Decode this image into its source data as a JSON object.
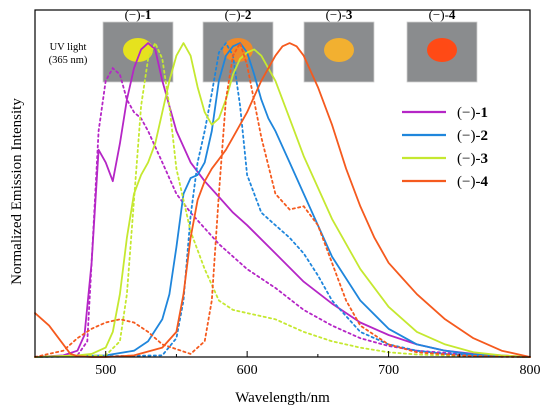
{
  "chart_data": {
    "type": "line",
    "xlabel": "Wavelength/nm",
    "ylabel": "Normalized Emission Intensity",
    "xlim": [
      450,
      800
    ],
    "ylim": [
      0,
      1.08
    ],
    "x_ticks": [
      500,
      600,
      700,
      800
    ],
    "legend_position": "right",
    "grid": false,
    "uv_note": [
      "UV light",
      "(365 nm)"
    ],
    "photos": [
      {
        "prefix": "(−)-",
        "num": "1",
        "powder_color": "#e6e21e"
      },
      {
        "prefix": "(−)-",
        "num": "2",
        "powder_color": "#f08a2a"
      },
      {
        "prefix": "(−)-",
        "num": "3",
        "powder_color": "#f2b030"
      },
      {
        "prefix": "(−)-",
        "num": "4",
        "powder_color": "#ff4a16"
      }
    ],
    "series": [
      {
        "name_prefix": "(−)-",
        "name_num": "1",
        "color": "#b526c6",
        "style": "solid",
        "x": [
          450,
          470,
          480,
          485,
          490,
          495,
          500,
          505,
          510,
          515,
          520,
          525,
          530,
          535,
          540,
          550,
          560,
          570,
          580,
          590,
          600,
          620,
          640,
          660,
          680,
          700,
          720,
          740,
          760,
          780,
          800
        ],
        "y": [
          0.0,
          0.005,
          0.02,
          0.07,
          0.3,
          0.66,
          0.62,
          0.56,
          0.68,
          0.82,
          0.92,
          0.98,
          1.0,
          0.98,
          0.88,
          0.72,
          0.62,
          0.56,
          0.51,
          0.46,
          0.42,
          0.33,
          0.24,
          0.17,
          0.11,
          0.07,
          0.04,
          0.02,
          0.01,
          0.005,
          0.0
        ]
      },
      {
        "name_prefix": "(−)-",
        "name_num": "1",
        "color": "#b526c6",
        "style": "dotted",
        "x": [
          450,
          480,
          487,
          490,
          495,
          500,
          505,
          510,
          515,
          520,
          525,
          530,
          540,
          550,
          560,
          570,
          580,
          600,
          620,
          640,
          660,
          680,
          700,
          720,
          750,
          780,
          800
        ],
        "y": [
          0.0,
          0.005,
          0.05,
          0.3,
          0.72,
          0.88,
          0.92,
          0.9,
          0.82,
          0.78,
          0.76,
          0.72,
          0.62,
          0.52,
          0.46,
          0.41,
          0.36,
          0.28,
          0.22,
          0.15,
          0.1,
          0.06,
          0.035,
          0.02,
          0.01,
          0.003,
          0.0
        ]
      },
      {
        "name_prefix": "(−)-",
        "name_num": "2",
        "color": "#1f86dc",
        "style": "solid",
        "x": [
          450,
          500,
          520,
          530,
          540,
          545,
          550,
          555,
          560,
          565,
          570,
          575,
          580,
          585,
          590,
          595,
          600,
          605,
          610,
          615,
          620,
          630,
          640,
          650,
          660,
          680,
          700,
          720,
          740,
          760,
          780,
          800
        ],
        "y": [
          0.0,
          0.005,
          0.02,
          0.05,
          0.12,
          0.2,
          0.35,
          0.52,
          0.57,
          0.58,
          0.62,
          0.72,
          0.88,
          0.96,
          0.99,
          1.0,
          0.97,
          0.9,
          0.82,
          0.76,
          0.72,
          0.62,
          0.52,
          0.42,
          0.32,
          0.18,
          0.09,
          0.04,
          0.02,
          0.008,
          0.003,
          0.0
        ]
      },
      {
        "name_prefix": "(−)-",
        "name_num": "2",
        "color": "#1f86dc",
        "style": "dotted",
        "x": [
          450,
          540,
          550,
          555,
          560,
          565,
          570,
          575,
          580,
          585,
          590,
          595,
          600,
          610,
          620,
          630,
          640,
          650,
          660,
          680,
          700,
          720,
          740,
          770,
          800
        ],
        "y": [
          0.0,
          0.005,
          0.06,
          0.18,
          0.45,
          0.62,
          0.72,
          0.84,
          0.97,
          1.0,
          0.96,
          0.8,
          0.58,
          0.46,
          0.42,
          0.38,
          0.33,
          0.26,
          0.18,
          0.08,
          0.04,
          0.02,
          0.01,
          0.003,
          0.0
        ]
      },
      {
        "name_prefix": "(−)-",
        "name_num": "3",
        "color": "#c5e830",
        "style": "solid",
        "x": [
          450,
          480,
          490,
          500,
          505,
          510,
          515,
          520,
          525,
          530,
          535,
          540,
          545,
          550,
          555,
          560,
          565,
          570,
          575,
          580,
          585,
          590,
          595,
          600,
          605,
          610,
          620,
          630,
          640,
          660,
          680,
          700,
          720,
          740,
          760,
          780,
          800
        ],
        "y": [
          0.0,
          0.005,
          0.01,
          0.03,
          0.08,
          0.2,
          0.38,
          0.52,
          0.58,
          0.62,
          0.68,
          0.78,
          0.88,
          0.96,
          1.0,
          0.96,
          0.86,
          0.78,
          0.74,
          0.76,
          0.82,
          0.9,
          0.95,
          0.97,
          0.98,
          0.96,
          0.88,
          0.76,
          0.64,
          0.44,
          0.28,
          0.16,
          0.08,
          0.04,
          0.015,
          0.005,
          0.0
        ]
      },
      {
        "name_prefix": "(−)-",
        "name_num": "3",
        "color": "#c5e830",
        "style": "dotted",
        "x": [
          450,
          500,
          510,
          515,
          520,
          525,
          530,
          535,
          540,
          545,
          550,
          560,
          570,
          580,
          590,
          600,
          610,
          620,
          640,
          660,
          680,
          700,
          720,
          760,
          800
        ],
        "y": [
          0.0,
          0.005,
          0.05,
          0.2,
          0.5,
          0.8,
          0.95,
          1.0,
          0.95,
          0.8,
          0.6,
          0.4,
          0.28,
          0.18,
          0.15,
          0.14,
          0.13,
          0.12,
          0.08,
          0.05,
          0.03,
          0.015,
          0.008,
          0.002,
          0.0
        ]
      },
      {
        "name_prefix": "(−)-",
        "name_num": "4",
        "color": "#f55a1e",
        "style": "solid",
        "x": [
          450,
          460,
          470,
          475,
          480,
          490,
          500,
          520,
          540,
          550,
          555,
          560,
          565,
          570,
          575,
          580,
          585,
          590,
          600,
          610,
          615,
          620,
          625,
          630,
          635,
          640,
          650,
          660,
          670,
          680,
          690,
          700,
          710,
          720,
          740,
          760,
          780,
          800
        ],
        "y": [
          0.14,
          0.1,
          0.04,
          0.01,
          0.003,
          0.0,
          0.0,
          0.005,
          0.03,
          0.08,
          0.2,
          0.38,
          0.5,
          0.56,
          0.6,
          0.63,
          0.66,
          0.7,
          0.78,
          0.88,
          0.92,
          0.96,
          0.99,
          1.0,
          0.99,
          0.96,
          0.86,
          0.74,
          0.6,
          0.48,
          0.38,
          0.3,
          0.25,
          0.2,
          0.12,
          0.06,
          0.02,
          0.0
        ]
      },
      {
        "name_prefix": "(−)-",
        "name_num": "4",
        "color": "#f55a1e",
        "style": "dotted",
        "x": [
          450,
          470,
          480,
          490,
          500,
          510,
          520,
          530,
          540,
          560,
          570,
          575,
          580,
          585,
          590,
          595,
          600,
          610,
          620,
          630,
          640,
          650,
          660,
          670,
          680,
          700,
          720,
          750,
          780,
          800
        ],
        "y": [
          0.0,
          0.02,
          0.06,
          0.09,
          0.11,
          0.12,
          0.11,
          0.08,
          0.04,
          0.01,
          0.05,
          0.18,
          0.52,
          0.82,
          0.96,
          1.0,
          0.93,
          0.7,
          0.52,
          0.47,
          0.48,
          0.42,
          0.3,
          0.18,
          0.1,
          0.04,
          0.015,
          0.005,
          0.001,
          0.0
        ]
      }
    ],
    "legend": [
      {
        "prefix": "(−)-",
        "num": "1",
        "color": "#b526c6"
      },
      {
        "prefix": "(−)-",
        "num": "2",
        "color": "#1f86dc"
      },
      {
        "prefix": "(−)-",
        "num": "3",
        "color": "#c5e830"
      },
      {
        "prefix": "(−)-",
        "num": "4",
        "color": "#f55a1e"
      }
    ]
  }
}
